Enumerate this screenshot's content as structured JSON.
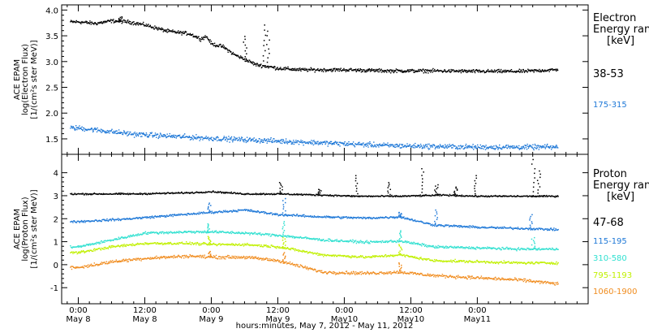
{
  "chart_data": [
    {
      "panel": "electron",
      "type": "scatter",
      "ylabel_lines": [
        "ACE EPAM",
        "log(Electron Flux)",
        "[1/(cm²s ster MeV)]"
      ],
      "ylim": [
        1.2,
        4.1
      ],
      "yticks": [
        1.5,
        2.0,
        2.5,
        3.0,
        3.5,
        4.0
      ],
      "ytick_labels": [
        "1.5",
        "2.0",
        "2.5",
        "3.0",
        "3.5",
        "4.0"
      ],
      "legend_title_lines": [
        "Electron",
        "Energy range",
        "[keV]"
      ],
      "legend_placement": "right",
      "series": [
        {
          "name": "38-53",
          "color": "#000000",
          "anchors_hours": [
            0,
            3,
            6,
            9,
            12,
            16,
            20,
            22,
            23,
            24,
            26,
            28,
            30,
            32,
            36,
            40,
            48,
            56,
            64,
            72,
            80,
            86
          ],
          "anchors_values": [
            3.78,
            3.75,
            3.8,
            3.78,
            3.72,
            3.6,
            3.55,
            3.45,
            3.5,
            3.35,
            3.3,
            3.15,
            3.05,
            2.95,
            2.88,
            2.85,
            2.85,
            2.83,
            2.83,
            2.82,
            2.82,
            2.85
          ],
          "spikes": [
            [
              7.5,
              3.88
            ],
            [
              33.5,
              3.72
            ],
            [
              34.2,
              3.6
            ],
            [
              30.0,
              3.5
            ]
          ]
        },
        {
          "name": "175-315",
          "color": "#1e78d7",
          "anchors_hours": [
            0,
            10,
            24,
            40,
            56,
            72,
            86
          ],
          "anchors_values": [
            1.72,
            1.6,
            1.52,
            1.45,
            1.38,
            1.35,
            1.35
          ],
          "spikes": []
        }
      ]
    },
    {
      "panel": "proton",
      "type": "scatter",
      "ylabel_lines": [
        "ACE EPAM",
        "log(Proton Flux)",
        "[1/(cm²s ster MeV)]"
      ],
      "ylim": [
        -1.7,
        4.8
      ],
      "yticks": [
        -1,
        0,
        1,
        2,
        3,
        4
      ],
      "ytick_labels": [
        "-1",
        "0",
        "1",
        "2",
        "3",
        "4"
      ],
      "legend_title_lines": [
        "Proton",
        "Energy range",
        "[keV]"
      ],
      "legend_placement": "right",
      "series": [
        {
          "name": "47-68",
          "color": "#000000",
          "anchors_hours": [
            0,
            10,
            20,
            24,
            30,
            36,
            44,
            50,
            58,
            66,
            72,
            80,
            86
          ],
          "anchors_values": [
            3.1,
            3.1,
            3.15,
            3.2,
            3.1,
            3.1,
            3.05,
            3.0,
            3.0,
            3.05,
            3.0,
            3.0,
            3.0
          ],
          "spikes": [
            [
              36.5,
              3.6
            ],
            [
              50.2,
              3.9
            ],
            [
              56.0,
              3.6
            ],
            [
              62.0,
              4.2
            ],
            [
              64.5,
              3.5
            ],
            [
              68.0,
              3.4
            ],
            [
              71.5,
              3.9
            ],
            [
              82.0,
              4.6
            ],
            [
              83.0,
              4.1
            ],
            [
              43.5,
              3.3
            ]
          ]
        },
        {
          "name": "115-195",
          "color": "#1e78d7",
          "anchors_hours": [
            0,
            8,
            16,
            24,
            30,
            36,
            44,
            52,
            58,
            64,
            72,
            80,
            86
          ],
          "anchors_values": [
            1.9,
            2.0,
            2.15,
            2.3,
            2.4,
            2.2,
            2.1,
            2.05,
            2.1,
            1.75,
            1.65,
            1.6,
            1.55
          ],
          "spikes": [
            [
              23.5,
              2.7
            ],
            [
              37.0,
              2.9
            ],
            [
              58.0,
              2.3
            ],
            [
              64.5,
              2.4
            ],
            [
              81.5,
              2.2
            ]
          ]
        },
        {
          "name": "310-580",
          "color": "#30e0d0",
          "anchors_hours": [
            0,
            6,
            12,
            20,
            24,
            30,
            36,
            44,
            52,
            58,
            64,
            72,
            80,
            86
          ],
          "anchors_values": [
            0.8,
            1.1,
            1.4,
            1.45,
            1.45,
            1.4,
            1.3,
            1.1,
            1.0,
            1.05,
            0.8,
            0.75,
            0.7,
            0.7
          ],
          "spikes": [
            [
              23.5,
              1.8
            ],
            [
              37.0,
              1.9
            ],
            [
              58.0,
              1.5
            ],
            [
              82.0,
              1.2
            ]
          ]
        },
        {
          "name": "795-1193",
          "color": "#c0f000",
          "anchors_hours": [
            0,
            6,
            12,
            20,
            24,
            30,
            36,
            44,
            52,
            58,
            64,
            72,
            80,
            86
          ],
          "anchors_values": [
            0.55,
            0.8,
            0.95,
            0.95,
            0.9,
            0.9,
            0.8,
            0.45,
            0.35,
            0.45,
            0.2,
            0.15,
            0.1,
            0.1
          ],
          "spikes": [
            [
              23.5,
              1.25
            ],
            [
              37.0,
              1.2
            ],
            [
              58.0,
              0.9
            ]
          ]
        },
        {
          "name": "1060-1900",
          "color": "#f08c1e",
          "anchors_hours": [
            0,
            6,
            12,
            20,
            24,
            30,
            36,
            44,
            52,
            58,
            64,
            72,
            80,
            86
          ],
          "anchors_values": [
            -0.1,
            0.15,
            0.3,
            0.4,
            0.35,
            0.35,
            0.2,
            -0.3,
            -0.35,
            -0.3,
            -0.45,
            -0.55,
            -0.65,
            -0.8
          ],
          "spikes": [
            [
              23.5,
              0.6
            ],
            [
              37.0,
              0.55
            ],
            [
              58.0,
              0.1
            ]
          ]
        }
      ]
    }
  ],
  "x_axis": {
    "range_hours": [
      -3,
      92
    ],
    "comment_units": "hours since May 8 0:00",
    "major_ticks_hours": [
      0,
      12,
      24,
      36,
      48,
      60,
      72
    ],
    "tick_labels_top": [
      "0:00",
      "12:00",
      "0:00",
      "12:00",
      "0:00",
      "12:00",
      "0:00"
    ],
    "tick_labels_bottom": [
      "May 8",
      "May 8",
      "May 9",
      "May 9",
      "May10",
      "May10",
      "May11"
    ],
    "xlabel": "hours:minutes, May  7, 2012 - May 11, 2012"
  }
}
